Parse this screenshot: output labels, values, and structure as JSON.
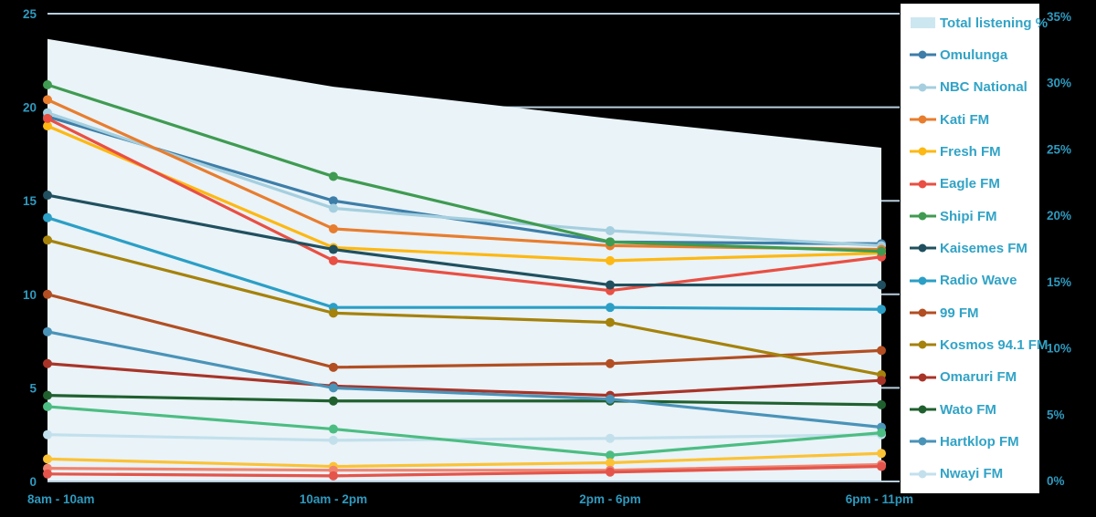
{
  "chart_data": {
    "type": "line",
    "categories": [
      "8am - 10am",
      "10am - 2pm",
      "2pm - 6pm",
      "6pm - 11pm"
    ],
    "left_axis": {
      "ticks": [
        0,
        5,
        10,
        15,
        20,
        25
      ],
      "range": [
        0,
        25
      ]
    },
    "right_axis": {
      "ticks": [
        "0%",
        "5%",
        "10%",
        "15%",
        "20%",
        "25%",
        "30%",
        "35%"
      ],
      "range": [
        0,
        35
      ]
    },
    "grid": true,
    "legend_position": "right",
    "area_series": {
      "name": "Total listening %",
      "axis": "right",
      "fill_color": "#e9f3f8",
      "legend_swatch_color": "#cde7f1",
      "values_percent": [
        33.3,
        29.7,
        27.3,
        25.1
      ]
    },
    "series": [
      {
        "name": "Omulunga",
        "color": "#3d7ea8",
        "in_legend": true,
        "values": [
          19.5,
          15.0,
          12.8,
          12.7
        ]
      },
      {
        "name": "NBC National",
        "color": "#a5cfdf",
        "in_legend": true,
        "values": [
          19.7,
          14.6,
          13.4,
          12.6
        ]
      },
      {
        "name": "Kati FM",
        "color": "#e87d2e",
        "in_legend": true,
        "values": [
          20.4,
          13.5,
          12.6,
          12.4
        ]
      },
      {
        "name": "Fresh FM",
        "color": "#fdb813",
        "in_legend": true,
        "values": [
          19.0,
          12.5,
          11.8,
          12.2
        ]
      },
      {
        "name": "Eagle FM",
        "color": "#e94f43",
        "in_legend": true,
        "values": [
          19.4,
          11.8,
          10.2,
          12.0
        ]
      },
      {
        "name": "Shipi FM",
        "color": "#3f9b51",
        "in_legend": true,
        "values": [
          21.2,
          16.3,
          12.8,
          12.3
        ]
      },
      {
        "name": "Kaisemes FM",
        "color": "#20505f",
        "in_legend": true,
        "values": [
          15.3,
          12.4,
          10.5,
          10.5
        ]
      },
      {
        "name": "Radio Wave",
        "color": "#2b9fc6",
        "in_legend": true,
        "values": [
          14.1,
          9.3,
          9.3,
          9.2
        ]
      },
      {
        "name": "99 FM",
        "color": "#b24e22",
        "in_legend": true,
        "values": [
          10.0,
          6.1,
          6.3,
          7.0
        ]
      },
      {
        "name": "Kosmos 94.1 FM",
        "color": "#a5820b",
        "in_legend": true,
        "values": [
          12.9,
          9.0,
          8.5,
          5.7
        ]
      },
      {
        "name": "Omaruri FM",
        "color": "#a83428",
        "in_legend": true,
        "values": [
          6.3,
          5.1,
          4.6,
          5.4
        ]
      },
      {
        "name": "Wato FM",
        "color": "#20602f",
        "in_legend": true,
        "values": [
          4.6,
          4.3,
          4.3,
          4.1
        ]
      },
      {
        "name": "Hartklop FM",
        "color": "#4a93b8",
        "in_legend": true,
        "values": [
          8.0,
          5.0,
          4.4,
          2.9
        ]
      },
      {
        "name": "Nwayi FM",
        "color": "#c2e0ec",
        "in_legend": true,
        "values": [
          2.5,
          2.2,
          2.3,
          2.5
        ]
      },
      {
        "name": "",
        "color": "#4cbd82",
        "in_legend": false,
        "values": [
          4.0,
          2.8,
          1.4,
          2.6
        ]
      },
      {
        "name": "",
        "color": "#fcc235",
        "in_legend": false,
        "values": [
          1.2,
          0.8,
          1.0,
          1.5
        ]
      },
      {
        "name": "",
        "color": "#f0836f",
        "in_legend": false,
        "values": [
          0.7,
          0.6,
          0.6,
          0.9
        ]
      },
      {
        "name": "",
        "color": "#e4544a",
        "in_legend": false,
        "values": [
          0.4,
          0.3,
          0.5,
          0.8
        ]
      }
    ],
    "style": {
      "axis_text_color": "#2e9abf",
      "legend_text_color": "#31a3c6",
      "gridline_color": "#b8cedd",
      "legend_background": "#ffffff",
      "chart_background": "#000000"
    }
  }
}
